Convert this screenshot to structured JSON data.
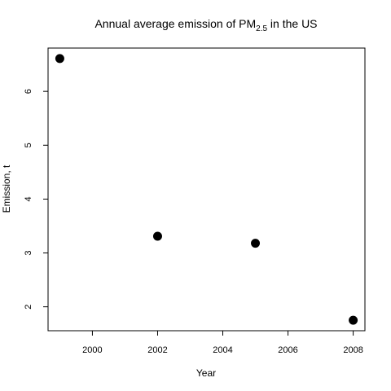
{
  "chart_data": {
    "type": "scatter",
    "title_main": "Annual average emission of PM",
    "title_subscript": "2.5",
    "title_suffix": " in the US",
    "xlabel": "Year",
    "ylabel": "Emission, t",
    "x": [
      1999,
      2002,
      2005,
      2008
    ],
    "y": [
      6.61,
      3.31,
      3.18,
      1.75
    ],
    "xlim": [
      1998.64,
      2008.36
    ],
    "ylim": [
      1.556,
      6.804
    ],
    "xticks": [
      2000,
      2002,
      2004,
      2006,
      2008
    ],
    "yticks": [
      2,
      3,
      4,
      5,
      6
    ],
    "grid": false,
    "legend": "none",
    "point_color": "#000000"
  }
}
